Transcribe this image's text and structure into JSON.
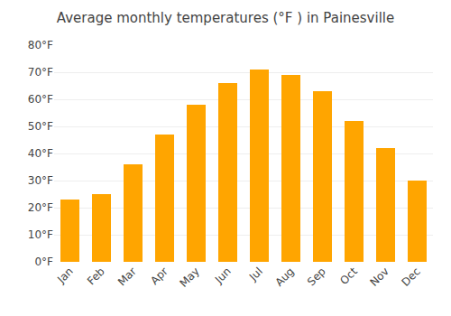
{
  "chart_data": {
    "type": "bar",
    "title": "Average monthly temperatures (°F ) in Painesville",
    "categories": [
      "Jan",
      "Feb",
      "Mar",
      "Apr",
      "May",
      "Jun",
      "Jul",
      "Aug",
      "Sep",
      "Oct",
      "Nov",
      "Dec"
    ],
    "values": [
      23,
      25,
      36,
      47,
      58,
      66,
      71,
      69,
      63,
      52,
      42,
      30
    ],
    "color": "#FFA500",
    "ylim": [
      0,
      80
    ],
    "yticks": [
      {
        "value": 0,
        "label": "0°F"
      },
      {
        "value": 10,
        "label": "10°F"
      },
      {
        "value": 20,
        "label": "20°F"
      },
      {
        "value": 30,
        "label": "30°F"
      },
      {
        "value": 40,
        "label": "40°F"
      },
      {
        "value": 50,
        "label": "50°F"
      },
      {
        "value": 60,
        "label": "60°F"
      },
      {
        "value": 70,
        "label": "70°F"
      },
      {
        "value": 80,
        "label": "80°F"
      }
    ],
    "grid": true
  }
}
